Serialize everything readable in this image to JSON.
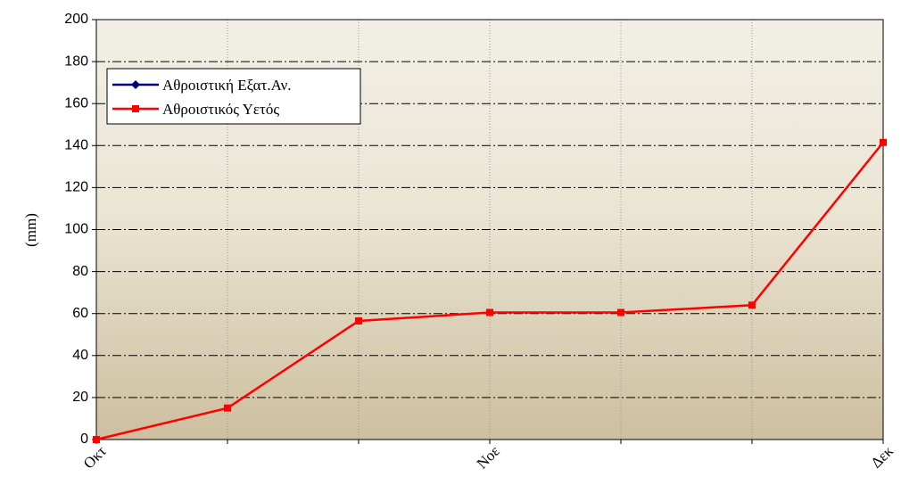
{
  "chart_data": {
    "type": "line",
    "y_label": "(mm)",
    "categories": [
      "Οκτ",
      null,
      null,
      "Νοε",
      null,
      null,
      "Δεκ"
    ],
    "series": [
      {
        "name": "Αθροιστική Εξατ.Αν.",
        "color": "#000080",
        "marker": "diamond",
        "values": [
          null,
          null,
          null,
          null,
          null,
          null,
          null
        ]
      },
      {
        "name": "Αθροιστικός Υετός",
        "color": "#ff0000",
        "marker": "square",
        "values": [
          0,
          15,
          56.5,
          60.5,
          60.5,
          64,
          141.5
        ]
      }
    ],
    "ylim": [
      0,
      200
    ],
    "yticks": [
      0,
      20,
      40,
      60,
      80,
      100,
      120,
      140,
      160,
      180,
      200
    ],
    "grid": true,
    "legend": "upper left"
  }
}
